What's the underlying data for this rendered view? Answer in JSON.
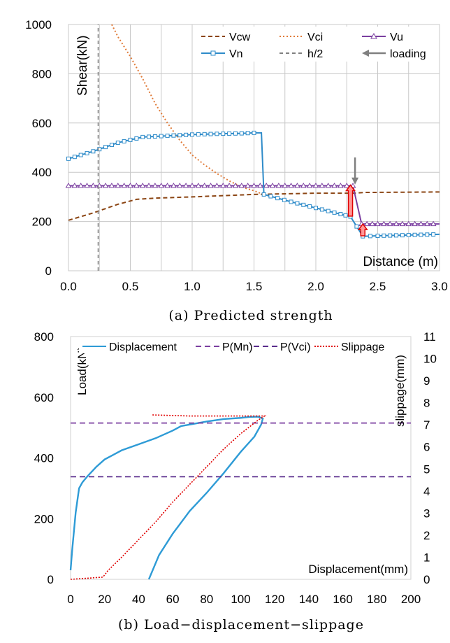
{
  "chart_data": [
    {
      "type": "line",
      "caption": "(a) Predicted strength",
      "ylabel": "Shear(kN)",
      "xlabel": "Distance (m)",
      "xlim": [
        0,
        3.0
      ],
      "ylim": [
        0,
        1000
      ],
      "x_ticks": [
        "0.0",
        "0.5",
        "1.0",
        "1.5",
        "2.0",
        "2.5",
        "3.0"
      ],
      "y_ticks": [
        "0",
        "200",
        "400",
        "600",
        "800",
        "1000"
      ],
      "grid": true,
      "legend_position": "top-right",
      "colors": {
        "Vcw": "#8B4513",
        "Vci": "#E07B39",
        "Vu": "#7B3FA0",
        "Vn": "#2E8BC9",
        "h2": "#808080",
        "loading": "#808080",
        "arrow": "#FF9999",
        "arrow_edge": "#E00000"
      },
      "series": [
        {
          "name": "Vcw",
          "style": "dashed",
          "x": [
            0.0,
            0.2,
            0.4,
            0.55,
            0.7,
            1.0,
            1.5,
            2.0,
            2.3,
            2.4,
            3.0
          ],
          "y": [
            205,
            235,
            270,
            290,
            295,
            300,
            310,
            315,
            315,
            318,
            320
          ]
        },
        {
          "name": "Vci",
          "style": "dotted",
          "x": [
            0.35,
            0.4,
            0.5,
            0.6,
            0.7,
            0.8,
            0.9,
            1.0,
            1.1,
            1.2,
            1.3,
            1.4,
            1.5,
            1.55
          ],
          "y": [
            1000,
            950,
            870,
            780,
            680,
            600,
            530,
            470,
            430,
            395,
            365,
            340,
            325,
            315
          ]
        },
        {
          "name": "Vu",
          "style": "solid-triangle",
          "x": [
            0.0,
            0.5,
            1.0,
            1.5,
            2.0,
            2.3,
            2.37,
            2.5,
            3.0
          ],
          "y": [
            345,
            345,
            345,
            345,
            345,
            345,
            190,
            190,
            190
          ]
        },
        {
          "name": "Vn",
          "style": "solid-square",
          "x": [
            0.0,
            0.2,
            0.4,
            0.6,
            0.8,
            1.0,
            1.2,
            1.4,
            1.5,
            1.56,
            1.58,
            1.8,
            2.0,
            2.2,
            2.28,
            2.38,
            2.5,
            3.0
          ],
          "y": [
            455,
            485,
            520,
            543,
            548,
            553,
            556,
            558,
            560,
            560,
            310,
            280,
            255,
            230,
            220,
            140,
            142,
            148
          ]
        },
        {
          "name": "h/2",
          "style": "dashed-vertical",
          "x": [
            0.24,
            0.24
          ],
          "y": [
            0,
            1000
          ]
        }
      ],
      "legend": [
        "Vcw",
        "Vci",
        "Vu",
        "Vn",
        "h/2",
        "loading"
      ],
      "annotations": [
        {
          "type": "loading-arrow",
          "x": 2.3,
          "y_from": 460,
          "y_to": 350
        },
        {
          "type": "block-arrow",
          "x": 2.28,
          "y_from": 222,
          "y_to": 348
        },
        {
          "type": "block-arrow",
          "x": 2.38,
          "y_from": 142,
          "y_to": 190
        }
      ]
    },
    {
      "type": "line",
      "caption": "(b) Load−displacement−slippage",
      "ylabel": "Load(kN)",
      "y2label": "slippage(mm)",
      "xlabel": "Displacement(mm)",
      "xlim": [
        0,
        200
      ],
      "ylim": [
        0,
        800
      ],
      "y2lim": [
        0,
        11
      ],
      "x_ticks": [
        "0",
        "20",
        "40",
        "60",
        "80",
        "100",
        "120",
        "140",
        "160",
        "180",
        "200"
      ],
      "y_ticks": [
        "0",
        "200",
        "400",
        "600",
        "800"
      ],
      "y2_ticks": [
        "0",
        "1",
        "2",
        "3",
        "4",
        "5",
        "6",
        "7",
        "8",
        "9",
        "10",
        "11"
      ],
      "grid": false,
      "legend_position": "top",
      "colors": {
        "Displacement": "#2E9BD6",
        "P(Mn)": "#7B3FA0",
        "P(Vci)": "#5A2D8C",
        "Slippage": "#E00000"
      },
      "series": [
        {
          "name": "Displacement",
          "style": "solid",
          "x": [
            0,
            1,
            3,
            5,
            7,
            10,
            15,
            20,
            25,
            30,
            40,
            50,
            60,
            65,
            70,
            80,
            90,
            100,
            105,
            110,
            113,
            112,
            108,
            100,
            90,
            80,
            70,
            60,
            52,
            46
          ],
          "y": [
            30,
            100,
            220,
            300,
            320,
            340,
            370,
            395,
            410,
            425,
            445,
            465,
            490,
            505,
            510,
            520,
            528,
            532,
            535,
            536,
            530,
            510,
            470,
            420,
            350,
            285,
            225,
            150,
            80,
            0
          ]
        },
        {
          "name": "P(Mn)",
          "style": "dashed",
          "x": [
            0,
            200
          ],
          "y": [
            515,
            515
          ]
        },
        {
          "name": "P(Vci)",
          "style": "dashed",
          "x": [
            0,
            200
          ],
          "y": [
            338,
            338
          ]
        },
        {
          "name": "Slippage",
          "style": "dotted",
          "axis": "y2",
          "x": [
            0,
            10,
            19,
            22,
            30,
            40,
            50,
            60,
            70,
            80,
            90,
            100,
            110,
            114,
            110,
            90,
            70,
            48
          ],
          "y": [
            0,
            0.05,
            0.1,
            0.4,
            1.0,
            1.8,
            2.6,
            3.5,
            4.3,
            5.1,
            5.9,
            6.6,
            7.2,
            7.4,
            7.4,
            7.4,
            7.4,
            7.45
          ]
        }
      ],
      "legend": [
        "Displacement",
        "P(Mn)",
        "P(Vci)",
        "Slippage"
      ]
    }
  ]
}
